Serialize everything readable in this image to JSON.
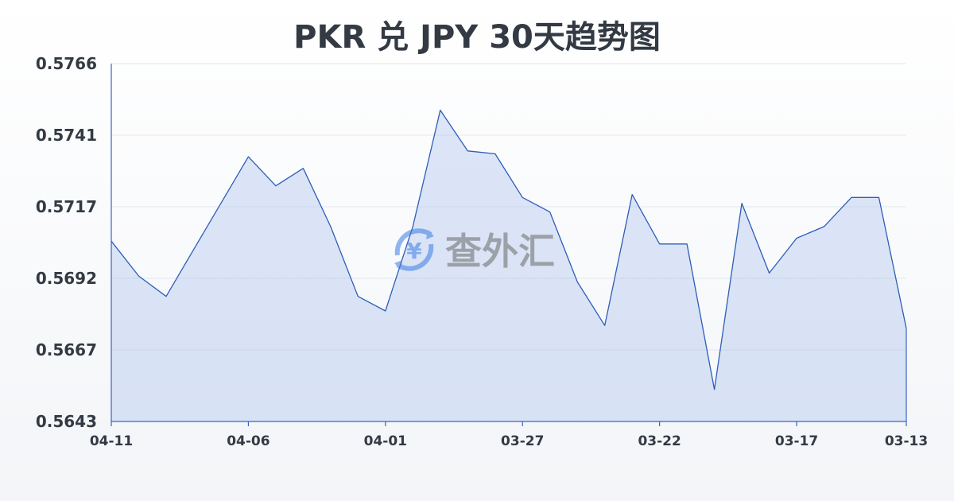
{
  "chart_data": {
    "type": "area",
    "title": "PKR 兑 JPY 30天趋势图",
    "xlabel": "",
    "ylabel": "",
    "ylim": [
      0.5643,
      0.5766
    ],
    "yticks": [
      "0.5766",
      "0.5741",
      "0.5717",
      "0.5692",
      "0.5667",
      "0.5643"
    ],
    "xticks": [
      "04-11",
      "04-06",
      "04-01",
      "03-27",
      "03-22",
      "03-17",
      "03-13"
    ],
    "grid": true,
    "legend": "none",
    "colors": {
      "line": "#2e5db9",
      "fill": "#a0b9eb",
      "grid": "#e3e7ee"
    },
    "x": [
      "04-11",
      "04-10",
      "04-09",
      "04-08",
      "04-07",
      "04-06",
      "04-05",
      "04-04",
      "04-03",
      "04-02",
      "04-01",
      "03-31",
      "03-30",
      "03-29",
      "03-28",
      "03-27",
      "03-26",
      "03-25",
      "03-24",
      "03-23",
      "03-22",
      "03-21",
      "03-20",
      "03-19",
      "03-18",
      "03-17",
      "03-16",
      "03-15",
      "03-14",
      "03-13"
    ],
    "values": [
      0.5705,
      0.5693,
      0.5686,
      0.5702,
      0.5718,
      0.5734,
      0.5724,
      0.573,
      0.571,
      0.5686,
      0.5681,
      0.571,
      0.575,
      0.5736,
      0.5735,
      0.572,
      0.5715,
      0.5691,
      0.5676,
      0.5721,
      0.5704,
      0.5704,
      0.5654,
      0.5718,
      0.5694,
      0.5706,
      0.571,
      0.572,
      0.572,
      0.5675
    ]
  },
  "watermark": {
    "text": "查外汇",
    "icon": "yen-exchange-icon"
  }
}
